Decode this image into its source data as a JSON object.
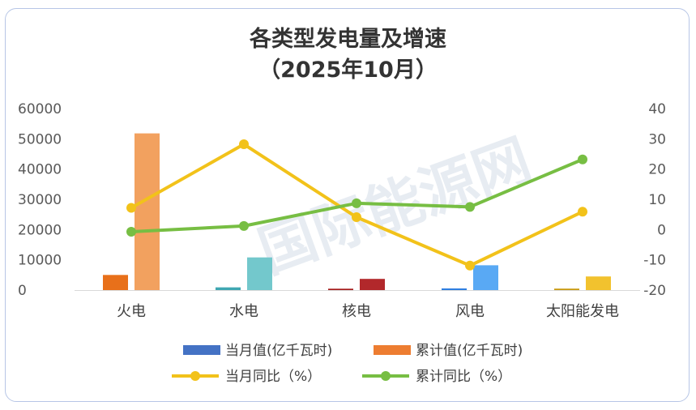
{
  "chart_data": {
    "type": "bar",
    "title": "各类型发电量及增速",
    "subtitle": "（2025年10月）",
    "categories": [
      "火电",
      "水电",
      "核电",
      "风电",
      "太阳能发电"
    ],
    "series": [
      {
        "name": "当月值(亿千瓦时)",
        "type": "bar",
        "axis": "left",
        "values": [
          5000,
          900,
          450,
          550,
          480
        ],
        "colors": [
          "#e8701a",
          "#3fa7b2",
          "#a51c1c",
          "#2f7fe0",
          "#c99a10"
        ]
      },
      {
        "name": "累计值(亿千瓦时)",
        "type": "bar",
        "axis": "left",
        "values": [
          51800,
          10800,
          3700,
          8200,
          4500
        ],
        "colors": [
          "#f2a15f",
          "#73c8cc",
          "#b2282b",
          "#59a9f4",
          "#f2c22e"
        ]
      },
      {
        "name": "当月同比（%）",
        "type": "line",
        "axis": "right",
        "values": [
          7.2,
          28.2,
          4.1,
          -11.9,
          5.9
        ],
        "color": "#f2c21a"
      },
      {
        "name": "累计同比（%）",
        "type": "line",
        "axis": "right",
        "values": [
          -0.7,
          1.2,
          8.7,
          7.5,
          23.2
        ],
        "color": "#77be43"
      }
    ],
    "ylim_left": [
      0,
      60000
    ],
    "yticks_left": [
      "0",
      "10000",
      "20000",
      "30000",
      "40000",
      "50000",
      "60000"
    ],
    "ylim_right": [
      -20,
      40
    ],
    "yticks_right": [
      "-20",
      "-10",
      "0",
      "10",
      "20",
      "30",
      "40"
    ],
    "legend_position": "bottom",
    "legend_colors": [
      "#4472c4",
      "#ed7d31",
      "#f2c21a",
      "#77be43"
    ],
    "grid": false,
    "watermark": "国际能源网"
  }
}
